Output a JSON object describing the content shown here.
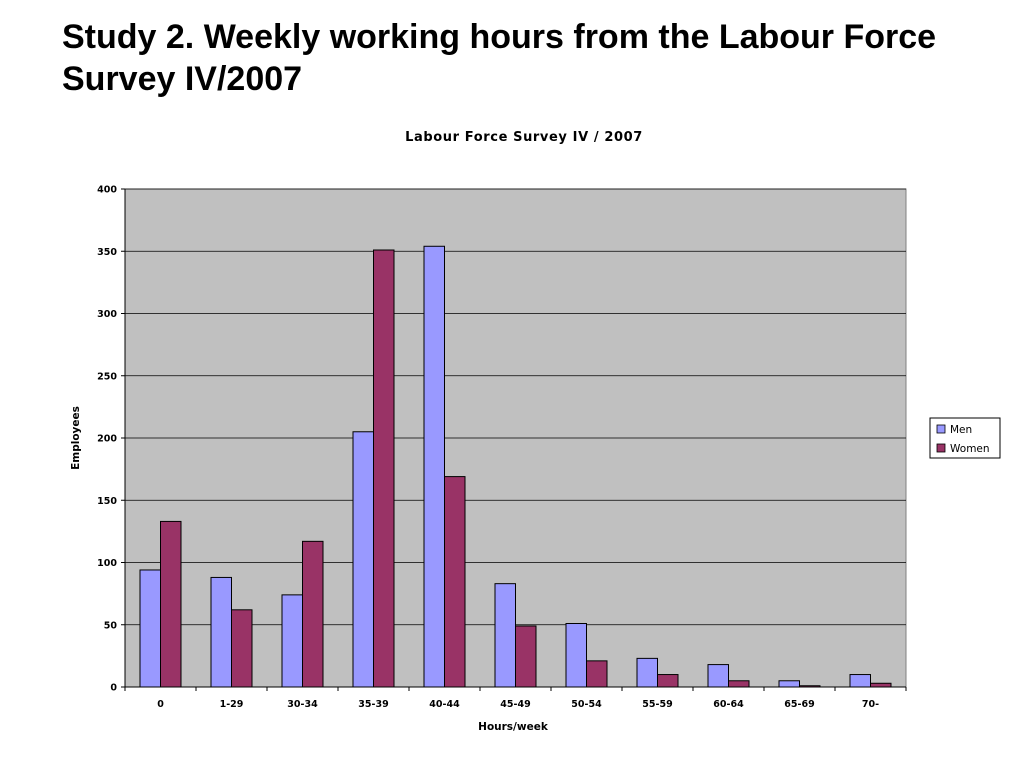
{
  "slide": {
    "title": "Study 2. Weekly working hours from the Labour Force Survey IV/2007"
  },
  "colors": {
    "plot_background": "#c0c0c0",
    "gridline": "#000000",
    "men": "#9999ff",
    "women": "#993366",
    "bar_outline": "#000000"
  },
  "chart_data": {
    "type": "bar",
    "title": "Labour Force Survey IV / 2007",
    "xlabel": "Hours/week",
    "ylabel": "Employees",
    "categories": [
      "0",
      "1-29",
      "30-34",
      "35-39",
      "40-44",
      "45-49",
      "50-54",
      "55-59",
      "60-64",
      "65-69",
      "70-"
    ],
    "series": [
      {
        "name": "Men",
        "values": [
          94,
          88,
          74,
          205,
          354,
          83,
          51,
          23,
          18,
          5,
          10
        ]
      },
      {
        "name": "Women",
        "values": [
          133,
          62,
          117,
          351,
          169,
          49,
          21,
          10,
          5,
          1,
          3
        ]
      }
    ],
    "ylim": [
      0,
      400
    ],
    "yticks": [
      0,
      50,
      100,
      150,
      200,
      250,
      300,
      350,
      400
    ],
    "grid": true,
    "legend": "right"
  }
}
